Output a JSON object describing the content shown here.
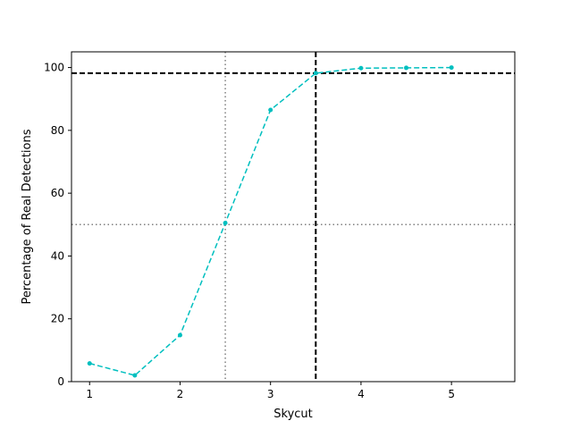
{
  "chart_data": {
    "type": "line",
    "xlabel": "Skycut",
    "ylabel": "Percentage of Real Detections",
    "xlim": [
      0.8,
      5.7
    ],
    "ylim": [
      0,
      105
    ],
    "xticks": [
      1,
      2,
      3,
      4,
      5
    ],
    "yticks": [
      0,
      20,
      40,
      60,
      80,
      100
    ],
    "grid": false,
    "series": [
      {
        "x": [
          1,
          1.5,
          2,
          2.5,
          3,
          3.5,
          4,
          4.5,
          5
        ],
        "y": [
          5.8,
          2.0,
          14.8,
          50.5,
          86.5,
          98.2,
          99.8,
          99.9,
          100.0
        ],
        "color": "#00bfbf",
        "linestyle": "dashed",
        "marker": "dot"
      }
    ],
    "reference_lines": [
      {
        "orientation": "vertical",
        "value": 2.5,
        "style": "dotted",
        "color": "#808080"
      },
      {
        "orientation": "horizontal",
        "value": 50,
        "style": "dotted",
        "color": "#808080"
      },
      {
        "orientation": "vertical",
        "value": 3.5,
        "style": "dashed",
        "color": "#000000"
      },
      {
        "orientation": "horizontal",
        "value": 98.2,
        "style": "dashed",
        "color": "#000000"
      }
    ]
  }
}
